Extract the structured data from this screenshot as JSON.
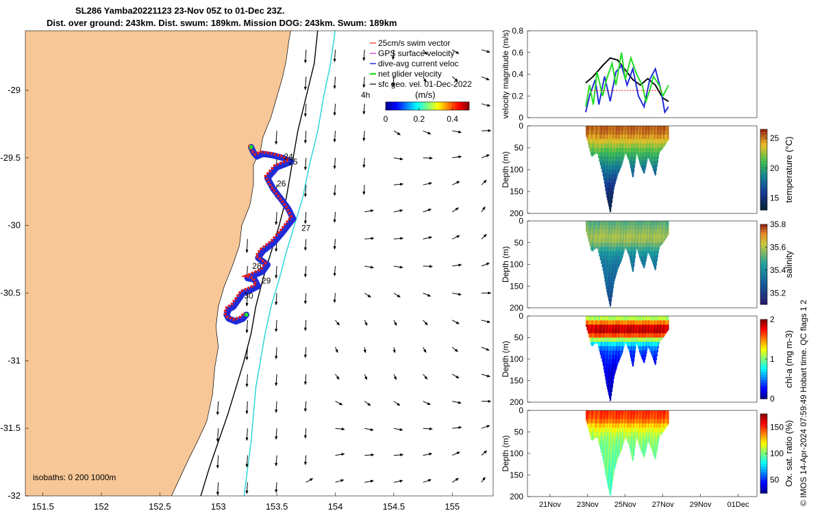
{
  "title": {
    "line1": "SL286 Yamba20221123 23-Nov 05Z to 01-Dec 23Z.",
    "line2": "Dist. over ground: 243km. Dist. swum: 189km. Mission DOG: 243km. Swum: 189km"
  },
  "credit": "© IMOS 14-Apr-2024 07:59:49 Hobart time. QC flags 1  2",
  "colors": {
    "land": "#f7c797",
    "path": "#1f2bd8",
    "swim": "#e8201c",
    "net": "#22dd22",
    "gps": "#d21fd2",
    "isobath_200": "#000000",
    "isobath_1000": "#22d3d8",
    "geovel": "#000000"
  },
  "chart_data": [
    {
      "type": "scatter",
      "name": "map",
      "xlabel": "Longitude",
      "ylabel": "Latitude",
      "xlim": [
        151.35,
        155.35
      ],
      "ylim": [
        -32,
        -28.56
      ],
      "xticks": [
        "151.5",
        "152",
        "152.5",
        "153",
        "153.5",
        "154",
        "154.5",
        "155"
      ],
      "yticks": [
        "-29",
        "-29.5",
        "-30",
        "-30.5",
        "-31",
        "-31.5",
        "-32"
      ],
      "xtick_values": [
        151.5,
        152,
        152.5,
        153,
        153.5,
        154,
        154.5,
        155
      ],
      "ytick_values": [
        -29,
        -29.5,
        -30,
        -30.5,
        -31,
        -31.5,
        -32
      ],
      "legend": {
        "position": "top-right",
        "items": [
          "25cm/s swim vector",
          "GPS surface velocity",
          "dive-avg current veloc",
          "net glider velocity",
          "sfc geo. vel. 01-Dec-2022"
        ]
      },
      "colorbar": {
        "label": "(m/s)",
        "ticks": [
          "0",
          "0.2",
          "0.4"
        ],
        "tick_values": [
          0,
          0.2,
          0.4
        ],
        "range": [
          0,
          0.5
        ],
        "time_step_label": "4h"
      },
      "isobath_label": "isobaths: 0   200  1000m",
      "day_labels": [
        {
          "text": "24",
          "lon": 153.56,
          "lat": -29.49
        },
        {
          "text": "25",
          "lon": 153.6,
          "lat": -29.53
        },
        {
          "text": "26",
          "lon": 153.5,
          "lat": -29.69
        },
        {
          "text": "27",
          "lon": 153.71,
          "lat": -30.02
        },
        {
          "text": "28",
          "lon": 153.29,
          "lat": -30.3
        },
        {
          "text": "29",
          "lon": 153.37,
          "lat": -30.41
        },
        {
          "text": "30",
          "lon": 153.22,
          "lat": -30.52
        }
      ],
      "track": {
        "lon": [
          153.28,
          153.3,
          153.33,
          153.38,
          153.46,
          153.55,
          153.62,
          153.5,
          153.42,
          153.47,
          153.55,
          153.6,
          153.64,
          153.55,
          153.47,
          153.38,
          153.34,
          153.42,
          153.38,
          153.3,
          153.25,
          153.31,
          153.34,
          153.27,
          153.21,
          153.17,
          153.13,
          153.09,
          153.07,
          153.09,
          153.15,
          153.21,
          153.24
        ],
        "lat": [
          -29.42,
          -29.46,
          -29.49,
          -29.47,
          -29.48,
          -29.5,
          -29.53,
          -29.57,
          -29.65,
          -29.73,
          -29.82,
          -29.88,
          -29.95,
          -30.05,
          -30.13,
          -30.19,
          -30.24,
          -30.29,
          -30.34,
          -30.37,
          -30.39,
          -30.4,
          -30.45,
          -30.48,
          -30.5,
          -30.55,
          -30.6,
          -30.62,
          -30.66,
          -30.69,
          -30.71,
          -30.69,
          -30.66
        ]
      }
    },
    {
      "type": "line",
      "name": "velocity-magnitude",
      "ylabel": "velocity magnitude (m/s)",
      "ylim": [
        0,
        0.8
      ],
      "yticks": [
        "0",
        "0.2",
        "0.4",
        "0.6",
        "0.8"
      ],
      "ytick_values": [
        0,
        0.2,
        0.4,
        0.6,
        0.8
      ],
      "x_day_lim": [
        19.8,
        27.3
      ],
      "series": [
        {
          "name": "black",
          "x": [
            22.9,
            23.3,
            23.8,
            24.2,
            24.6,
            25.0,
            25.4,
            25.8,
            26.2,
            26.6,
            27.0,
            27.3
          ],
          "values": [
            0.32,
            0.38,
            0.48,
            0.55,
            0.53,
            0.44,
            0.35,
            0.3,
            0.36,
            0.3,
            0.18,
            0.15
          ]
        },
        {
          "name": "blue",
          "x": [
            22.9,
            23.1,
            23.4,
            23.6,
            23.9,
            24.2,
            24.5,
            24.8,
            25.1,
            25.4,
            25.7,
            26.0,
            26.3,
            26.6,
            26.9,
            27.1,
            27.3
          ],
          "values": [
            0.05,
            0.2,
            0.35,
            0.12,
            0.38,
            0.15,
            0.42,
            0.48,
            0.3,
            0.45,
            0.2,
            0.1,
            0.35,
            0.45,
            0.25,
            0.05,
            0.1
          ]
        },
        {
          "name": "green",
          "x": [
            22.9,
            23.1,
            23.3,
            23.5,
            23.8,
            24.0,
            24.3,
            24.5,
            24.8,
            25.0,
            25.3,
            25.6,
            25.9,
            26.1,
            26.3,
            26.5,
            26.8,
            27.0,
            27.3
          ],
          "values": [
            0.1,
            0.3,
            0.12,
            0.42,
            0.2,
            0.35,
            0.5,
            0.3,
            0.6,
            0.35,
            0.55,
            0.4,
            0.3,
            0.15,
            0.25,
            0.38,
            0.3,
            0.2,
            0.3
          ]
        },
        {
          "name": "red",
          "x": [
            23.2,
            27.0
          ],
          "values": [
            0.25,
            0.25
          ]
        }
      ]
    },
    {
      "type": "heatmap",
      "name": "temperature",
      "ylabel": "Depth (m)",
      "ylim": [
        200,
        0
      ],
      "yticks": [
        "0",
        "50",
        "100",
        "150",
        "200"
      ],
      "ytick_values": [
        0,
        50,
        100,
        150,
        200
      ],
      "colorbar": {
        "label": "temperature (°C)",
        "ticks": [
          "15",
          "20",
          "25"
        ],
        "tick_values": [
          15,
          20,
          25
        ],
        "range": [
          13,
          26.5
        ]
      },
      "x_day": [
        22.9,
        23.2,
        23.5,
        23.8,
        24.0,
        24.2,
        24.4,
        24.6,
        24.8,
        25.0,
        25.2,
        25.4,
        25.6,
        25.8,
        26.0,
        26.2,
        26.4,
        26.6,
        26.8,
        27.0,
        27.3
      ],
      "bottom_depth": [
        20,
        70,
        60,
        110,
        160,
        200,
        140,
        110,
        90,
        60,
        80,
        120,
        60,
        90,
        110,
        70,
        90,
        115,
        60,
        50,
        30
      ],
      "profile": {
        "depth": [
          0,
          20,
          40,
          60,
          80,
          100,
          150,
          200
        ],
        "value": [
          25.5,
          25,
          23,
          21,
          19.5,
          18,
          15,
          13.5
        ]
      }
    },
    {
      "type": "heatmap",
      "name": "salinity",
      "ylabel": "Depth (m)",
      "ylim": [
        200,
        0
      ],
      "yticks": [
        "0",
        "50",
        "100",
        "150",
        "200"
      ],
      "ytick_values": [
        0,
        50,
        100,
        150,
        200
      ],
      "colorbar": {
        "label": "salinity",
        "ticks": [
          "35.2",
          "35.4",
          "35.6",
          "35.8"
        ],
        "tick_values": [
          35.2,
          35.4,
          35.6,
          35.8
        ],
        "range": [
          35.1,
          35.8
        ]
      },
      "x_day": [
        22.9,
        23.2,
        23.5,
        23.8,
        24.0,
        24.2,
        24.4,
        24.6,
        24.8,
        25.0,
        25.2,
        25.4,
        25.6,
        25.8,
        26.0,
        26.2,
        26.4,
        26.6,
        26.8,
        27.0,
        27.3
      ],
      "bottom_depth": [
        20,
        70,
        60,
        110,
        160,
        200,
        140,
        110,
        90,
        60,
        80,
        120,
        60,
        90,
        110,
        70,
        90,
        115,
        60,
        50,
        30
      ],
      "profile": {
        "depth": [
          0,
          20,
          40,
          60,
          80,
          100,
          150,
          200
        ],
        "value": [
          35.5,
          35.55,
          35.6,
          35.5,
          35.4,
          35.35,
          35.3,
          35.2
        ]
      }
    },
    {
      "type": "heatmap",
      "name": "chlorophyll",
      "ylabel": "Depth (m)",
      "ylim": [
        200,
        0
      ],
      "yticks": [
        "0",
        "50",
        "100",
        "150",
        "200"
      ],
      "ytick_values": [
        0,
        50,
        100,
        150,
        200
      ],
      "colorbar": {
        "label": "chl-a (mg m-3)",
        "ticks": [
          "0",
          "1",
          "2"
        ],
        "tick_values": [
          0,
          1,
          2
        ],
        "range": [
          0,
          2
        ]
      },
      "x_day": [
        22.9,
        23.2,
        23.5,
        23.8,
        24.0,
        24.2,
        24.4,
        24.6,
        24.8,
        25.0,
        25.2,
        25.4,
        25.6,
        25.8,
        26.0,
        26.2,
        26.4,
        26.6,
        26.8,
        27.0,
        27.3
      ],
      "bottom_depth": [
        20,
        70,
        60,
        110,
        160,
        200,
        140,
        110,
        90,
        60,
        80,
        120,
        60,
        90,
        110,
        70,
        90,
        115,
        60,
        50,
        30
      ],
      "profile": {
        "depth": [
          0,
          15,
          30,
          45,
          60,
          80,
          120,
          200
        ],
        "value": [
          0.9,
          1.5,
          2.0,
          1.6,
          0.8,
          0.4,
          0.2,
          0.1
        ]
      }
    },
    {
      "type": "heatmap",
      "name": "oxygen",
      "ylabel": "Depth (m)",
      "ylim": [
        200,
        0
      ],
      "yticks": [
        "0",
        "50",
        "100",
        "150",
        "200"
      ],
      "ytick_values": [
        0,
        50,
        100,
        150,
        200
      ],
      "colorbar": {
        "label": "Ox. sat. ratio (%)",
        "ticks": [
          "50",
          "100",
          "150"
        ],
        "tick_values": [
          50,
          100,
          150
        ],
        "range": [
          25,
          175
        ]
      },
      "xticks": [
        "21Nov",
        "23Nov",
        "25Nov",
        "27Nov",
        "29Nov",
        "01Dec"
      ],
      "xtick_days": [
        21,
        23,
        25,
        27,
        29,
        31
      ],
      "x_day_lim": [
        19.8,
        32.0
      ],
      "x_day": [
        22.9,
        23.2,
        23.5,
        23.8,
        24.0,
        24.2,
        24.4,
        24.6,
        24.8,
        25.0,
        25.2,
        25.4,
        25.6,
        25.8,
        26.0,
        26.2,
        26.4,
        26.6,
        26.8,
        27.0,
        27.3
      ],
      "bottom_depth": [
        20,
        70,
        60,
        110,
        160,
        200,
        140,
        110,
        90,
        60,
        80,
        120,
        60,
        90,
        110,
        70,
        90,
        115,
        60,
        50,
        30
      ],
      "profile": {
        "depth": [
          0,
          20,
          40,
          60,
          80,
          100,
          150,
          200
        ],
        "value": [
          150,
          145,
          120,
          105,
          100,
          98,
          95,
          90
        ]
      }
    }
  ]
}
